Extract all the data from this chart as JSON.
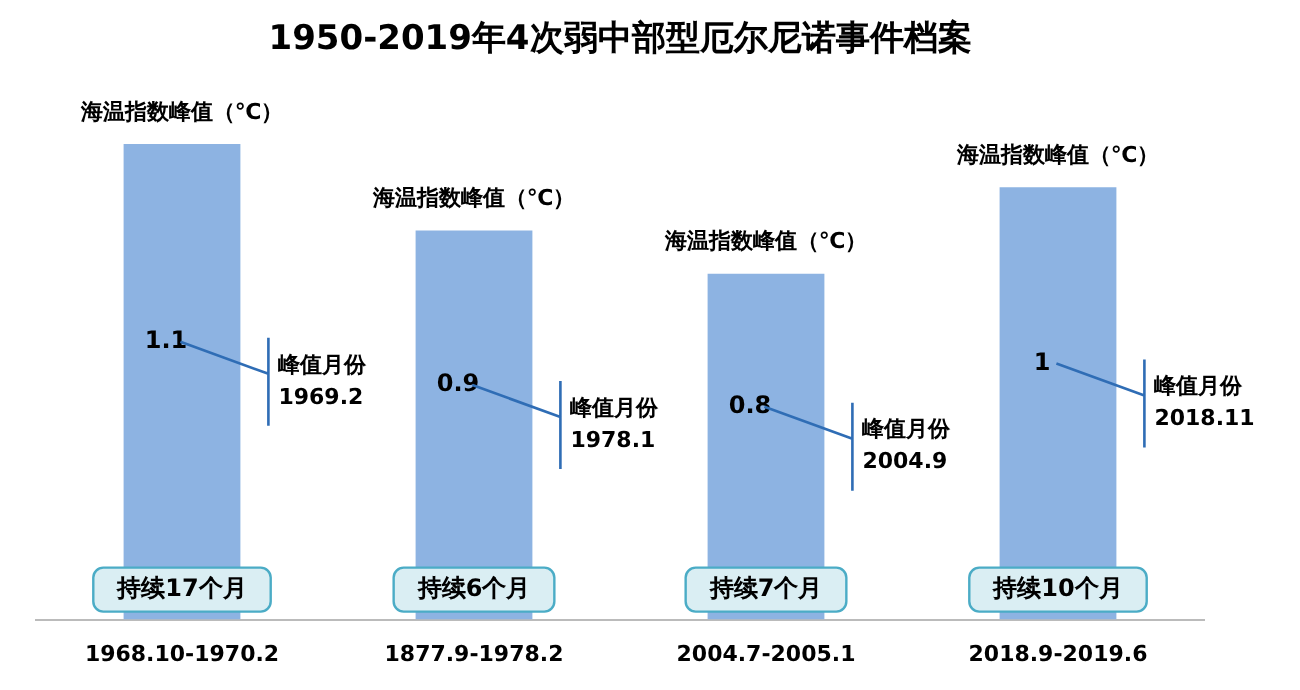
{
  "chart_data": {
    "type": "bar",
    "title": "1950-2019年4次弱中部型厄尔尼诺事件档案",
    "categories": [
      "1968.10-1970.2",
      "1877.9-1978.2",
      "2004.7-2005.1",
      "2018.9-2019.6"
    ],
    "values": [
      1.1,
      0.9,
      0.8,
      1
    ],
    "color": "#8db3e2",
    "data_labels": true,
    "tick_labels": "x",
    "grid": false,
    "legend": false,
    "annotations": [
      {
        "text": "海温指数峰值（℃）",
        "x": "1968.10-1970.2",
        "y": 1.1
      },
      {
        "text": "海温指数峰值（℃）",
        "x": "1877.9-1978.2",
        "y": 0.9
      },
      {
        "text": "海温指数峰值（℃）",
        "x": "2004.7-2005.1",
        "y": 0.8
      },
      {
        "text": "海温指数峰值（℃）",
        "x": "2018.9-2019.6",
        "y": 1
      },
      "峰值月份\n1969.2",
      "峰值月份\n1978.1",
      "峰值月份\n2004.9",
      "峰值月份\n2018.11",
      "持续17个月",
      "持续6个月",
      "持续7个月",
      "持续10个月"
    ]
  }
}
